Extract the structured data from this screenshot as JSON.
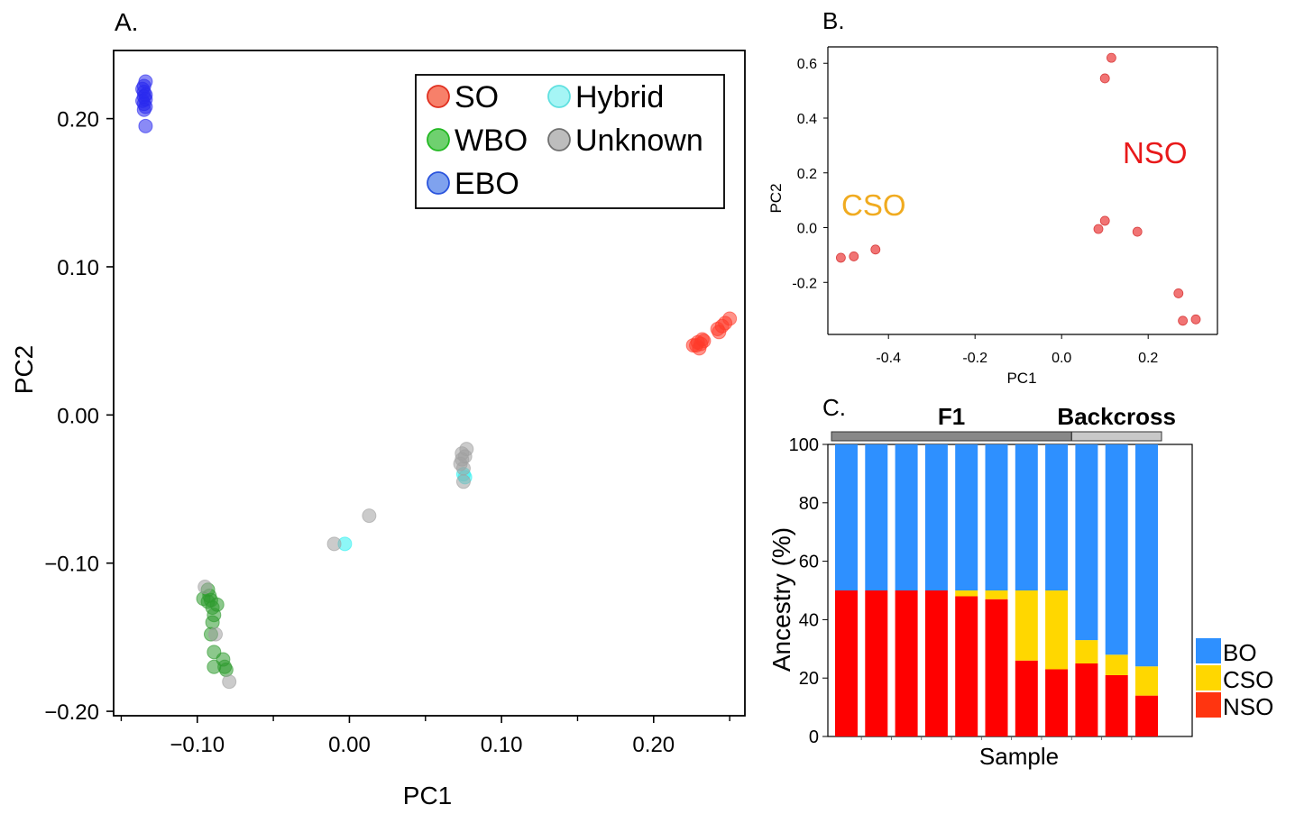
{
  "chart_data": [
    {
      "panel": "A.",
      "type": "scatter",
      "xlabel": "PC1",
      "ylabel": "PC2",
      "xlim": [
        -0.155,
        0.26
      ],
      "ylim": [
        -0.203,
        0.246
      ],
      "xticks": [
        -0.1,
        0.0,
        0.1,
        0.2
      ],
      "xtick_labels": [
        "−0.10",
        "0.00",
        "0.10",
        "0.20"
      ],
      "yticks": [
        -0.2,
        -0.1,
        0.0,
        0.1,
        0.2
      ],
      "ytick_labels": [
        "−0.20",
        "−0.10",
        "0.00",
        "0.10",
        "0.20"
      ],
      "legend_position": "top-right",
      "grid": false,
      "series": [
        {
          "name": "SO",
          "color": "#ff3b2a",
          "legend_fill": "#f7806a",
          "legend_edge": "#e03020",
          "points": [
            [
              0.228,
              0.047
            ],
            [
              0.226,
              0.047
            ],
            [
              0.229,
              0.049
            ],
            [
              0.231,
              0.048
            ],
            [
              0.23,
              0.045
            ],
            [
              0.232,
              0.051
            ],
            [
              0.233,
              0.05
            ],
            [
              0.242,
              0.058
            ],
            [
              0.245,
              0.06
            ],
            [
              0.247,
              0.062
            ],
            [
              0.25,
              0.065
            ],
            [
              0.243,
              0.056
            ]
          ]
        },
        {
          "name": "WBO",
          "color": "#2e9a2e",
          "legend_fill": "#6fd06f",
          "legend_edge": "#22b822",
          "points": [
            [
              -0.093,
              -0.118
            ],
            [
              -0.092,
              -0.122
            ],
            [
              -0.091,
              -0.125
            ],
            [
              -0.09,
              -0.13
            ],
            [
              -0.089,
              -0.135
            ],
            [
              -0.09,
              -0.14
            ],
            [
              -0.096,
              -0.124
            ],
            [
              -0.091,
              -0.148
            ],
            [
              -0.089,
              -0.16
            ],
            [
              -0.089,
              -0.17
            ],
            [
              -0.083,
              -0.165
            ],
            [
              -0.082,
              -0.17
            ],
            [
              -0.081,
              -0.172
            ],
            [
              -0.087,
              -0.128
            ],
            [
              -0.093,
              -0.126
            ]
          ]
        },
        {
          "name": "EBO",
          "color": "#2a2aee",
          "legend_fill": "#7fa2ee",
          "legend_edge": "#2a54dd",
          "points": [
            [
              -0.134,
              0.225
            ],
            [
              -0.135,
              0.222
            ],
            [
              -0.136,
              0.22
            ],
            [
              -0.135,
              0.218
            ],
            [
              -0.134,
              0.216
            ],
            [
              -0.135,
              0.215
            ],
            [
              -0.134,
              0.213
            ],
            [
              -0.136,
              0.212
            ],
            [
              -0.135,
              0.21
            ],
            [
              -0.134,
              0.208
            ],
            [
              -0.135,
              0.206
            ],
            [
              -0.134,
              0.195
            ]
          ]
        },
        {
          "name": "Hybrid",
          "color": "#2ff0f0",
          "legend_fill": "#a5f5f5",
          "legend_edge": "#60e0e0",
          "points": [
            [
              -0.003,
              -0.087
            ],
            [
              0.075,
              -0.04
            ],
            [
              0.076,
              -0.042
            ]
          ]
        },
        {
          "name": "Unknown",
          "color": "#a0a0a0",
          "legend_fill": "#bdbdbd",
          "legend_edge": "#707070",
          "points": [
            [
              -0.01,
              -0.087
            ],
            [
              0.013,
              -0.068
            ],
            [
              0.077,
              -0.023
            ],
            [
              0.076,
              -0.028
            ],
            [
              0.074,
              -0.03
            ],
            [
              0.073,
              -0.033
            ],
            [
              0.075,
              -0.036
            ],
            [
              0.075,
              -0.045
            ],
            [
              0.074,
              -0.026
            ],
            [
              -0.088,
              -0.148
            ],
            [
              -0.079,
              -0.18
            ],
            [
              -0.095,
              -0.116
            ]
          ]
        }
      ]
    },
    {
      "panel": "B.",
      "type": "scatter",
      "xlabel": "PC1",
      "ylabel": "PC2",
      "xlim": [
        -0.54,
        0.36
      ],
      "ylim": [
        -0.39,
        0.66
      ],
      "xticks": [
        -0.4,
        -0.2,
        0.0,
        0.2
      ],
      "xtick_labels": [
        "-0.4",
        "-0.2",
        "0.0",
        "0.2"
      ],
      "yticks": [
        -0.2,
        0.0,
        0.2,
        0.4,
        0.6
      ],
      "ytick_labels": [
        "-0.2",
        "0.0",
        "0.2",
        "0.4",
        "0.6"
      ],
      "grid": false,
      "annotations": [
        {
          "text": "CSO",
          "color": "#f0ab20"
        },
        {
          "text": "NSO",
          "color": "#e8191a"
        }
      ],
      "series": [
        {
          "color": "#ee5c5c",
          "points": [
            [
              -0.51,
              -0.11
            ],
            [
              -0.48,
              -0.105
            ],
            [
              -0.43,
              -0.08
            ],
            [
              0.115,
              0.62
            ],
            [
              0.1,
              0.545
            ],
            [
              0.085,
              -0.005
            ],
            [
              0.1,
              0.025
            ],
            [
              0.175,
              -0.015
            ],
            [
              0.27,
              -0.24
            ],
            [
              0.28,
              -0.34
            ],
            [
              0.31,
              -0.335
            ]
          ]
        }
      ]
    },
    {
      "panel": "C.",
      "type": "bar",
      "stacked": true,
      "xlabel": "Sample",
      "ylabel": "Ancestry (%)",
      "ylim": [
        0,
        100
      ],
      "yticks": [
        0,
        20,
        40,
        60,
        80,
        100
      ],
      "ytick_labels": [
        "0",
        "20",
        "40",
        "60",
        "80",
        "100"
      ],
      "grid": false,
      "legend_position": "right",
      "groups": [
        {
          "label": "F1",
          "start": 0,
          "end": 7
        },
        {
          "label": "Backcross",
          "start": 8,
          "end": 10
        }
      ],
      "series": [
        {
          "name": "NSO",
          "color": "#ff0000",
          "legend_color": "#ff3510",
          "values": [
            50,
            50,
            50,
            50,
            48,
            47,
            26,
            23,
            25,
            21,
            14
          ]
        },
        {
          "name": "CSO",
          "color": "#ffd700",
          "legend_color": "#ffd700",
          "values": [
            0,
            0,
            0,
            0,
            2,
            3,
            24,
            27,
            8,
            7,
            10
          ]
        },
        {
          "name": "BO",
          "color": "#2e90ff",
          "legend_color": "#2e90ff",
          "values": [
            50,
            50,
            50,
            50,
            50,
            50,
            50,
            50,
            67,
            72,
            76
          ]
        }
      ]
    }
  ]
}
